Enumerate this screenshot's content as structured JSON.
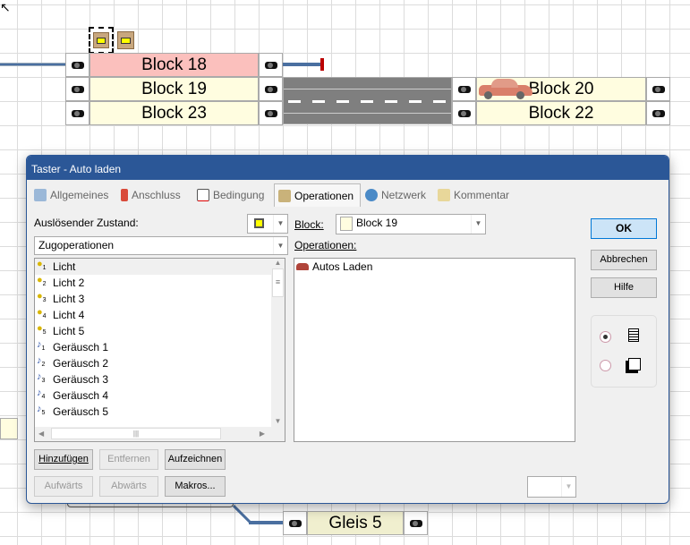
{
  "canvas": {
    "blocks": [
      {
        "label": "Block 18",
        "color": "#fbc0bd"
      },
      {
        "label": "Block 19",
        "color": "#fffde0"
      },
      {
        "label": "Block 23",
        "color": "#fffde0"
      },
      {
        "label": "Block 20",
        "color": "#fffde0"
      },
      {
        "label": "Block 22",
        "color": "#fffde0"
      },
      {
        "label": "Gleis 5",
        "color": "#f0efcf"
      }
    ]
  },
  "dialog": {
    "title": "Taster - Auto laden",
    "tabs": [
      {
        "label": "Allgemeines",
        "icon": "settings-sheet-icon"
      },
      {
        "label": "Anschluss",
        "icon": "plug-icon"
      },
      {
        "label": "Bedingung",
        "icon": "document-stop-icon"
      },
      {
        "label": "Operationen",
        "icon": "keyboard-icon",
        "selected": true
      },
      {
        "label": "Netzwerk",
        "icon": "network-globe-icon"
      },
      {
        "label": "Kommentar",
        "icon": "note-pencil-icon"
      }
    ],
    "trigger_label": "Auslösender Zustand:",
    "category_value": "Zugoperationen",
    "items": [
      {
        "label": "Licht",
        "icon": "bulb-icon",
        "n": "1"
      },
      {
        "label": "Licht 2",
        "icon": "bulb-icon",
        "n": "2"
      },
      {
        "label": "Licht 3",
        "icon": "bulb-icon",
        "n": "3"
      },
      {
        "label": "Licht 4",
        "icon": "bulb-icon",
        "n": "4"
      },
      {
        "label": "Licht 5",
        "icon": "bulb-icon",
        "n": "5"
      },
      {
        "label": "Geräusch 1",
        "icon": "music-note-icon",
        "n": "1"
      },
      {
        "label": "Geräusch 2",
        "icon": "music-note-icon",
        "n": "2"
      },
      {
        "label": "Geräusch 3",
        "icon": "music-note-icon",
        "n": "3"
      },
      {
        "label": "Geräusch 4",
        "icon": "music-note-icon",
        "n": "4"
      },
      {
        "label": "Geräusch 5",
        "icon": "music-note-icon",
        "n": "5"
      }
    ],
    "block_label": "Block:",
    "block_value": "Block 19",
    "operations_label": "Operationen:",
    "operations": [
      {
        "label": "Autos Laden",
        "icon": "car-icon"
      }
    ],
    "buttons": {
      "ok": "OK",
      "cancel": "Abbrechen",
      "help": "Hilfe",
      "add": "Hinzufügen",
      "remove": "Entfernen",
      "record": "Aufzeichnen",
      "up": "Aufwärts",
      "down": "Abwärts",
      "macros": "Makros..."
    }
  }
}
